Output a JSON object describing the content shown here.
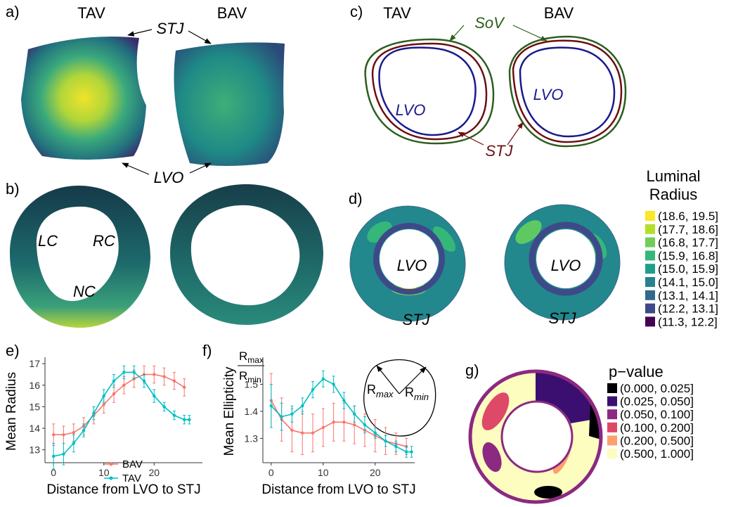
{
  "panels": {
    "a": {
      "label": "a)",
      "titles": [
        "TAV",
        "BAV"
      ],
      "annotations": [
        "STJ",
        "LVO"
      ]
    },
    "b": {
      "label": "b)",
      "annotations": [
        "LC",
        "RC",
        "NC"
      ]
    },
    "c": {
      "label": "c)",
      "titles": [
        "TAV",
        "BAV"
      ],
      "annotations": [
        "SoV",
        "LVO",
        "LVO",
        "STJ"
      ]
    },
    "d": {
      "label": "d)",
      "annotations": [
        "LVO",
        "STJ",
        "LVO",
        "STJ"
      ],
      "legend": {
        "title": [
          "Luminal",
          "Radius"
        ],
        "entries": [
          {
            "label": "(18.6, 19.5]",
            "color": "#fde725"
          },
          {
            "label": "(17.7, 18.6]",
            "color": "#b5de2b"
          },
          {
            "label": "(16.8, 17.7]",
            "color": "#6ece58"
          },
          {
            "label": "(15.9, 16.8]",
            "color": "#35b779"
          },
          {
            "label": "(15.0, 15.9]",
            "color": "#1f9e89"
          },
          {
            "label": "(14.1, 15.0]",
            "color": "#26828e"
          },
          {
            "label": "(13.1, 14.1]",
            "color": "#31688e"
          },
          {
            "label": "(12.2, 13.1]",
            "color": "#3e4989"
          },
          {
            "label": "(11.3, 12.2]",
            "color": "#440154"
          }
        ]
      }
    },
    "g": {
      "label": "g)",
      "legend": {
        "title": "p−value",
        "entries": [
          {
            "label": "(0.000, 0.025]",
            "color": "#000004"
          },
          {
            "label": "(0.025, 0.050]",
            "color": "#3b0f70"
          },
          {
            "label": "(0.050, 0.100]",
            "color": "#8c2981"
          },
          {
            "label": "(0.100, 0.200]",
            "color": "#de4968"
          },
          {
            "label": "(0.200, 0.500]",
            "color": "#fe9f6d"
          },
          {
            "label": "(0.500, 1.000]",
            "color": "#fcfdbf"
          }
        ]
      }
    }
  },
  "chart_data": [
    {
      "type": "line",
      "panel_label": "e)",
      "x_label": "Distance from LVO to STJ",
      "y_label": "Mean Radius",
      "xlim": [
        -1.7,
        29.6
      ],
      "ylim": [
        12.4,
        17.3
      ],
      "xticks": [
        0,
        10,
        20
      ],
      "yticks": [
        13,
        14,
        15,
        16,
        17
      ],
      "legend": "bottom",
      "series": [
        {
          "name": "BAV",
          "color": "#f8766d",
          "x": [
            0,
            2,
            4,
            6,
            8,
            10,
            12,
            14,
            16,
            18,
            20,
            22,
            24,
            26
          ],
          "values": [
            13.7,
            13.7,
            13.8,
            14.1,
            14.6,
            15.1,
            15.6,
            16.0,
            16.3,
            16.5,
            16.5,
            16.4,
            16.2,
            15.9
          ],
          "errors": [
            0.5,
            0.4,
            0.4,
            0.4,
            0.4,
            0.4,
            0.4,
            0.4,
            0.4,
            0.4,
            0.4,
            0.4,
            0.4,
            0.4
          ]
        },
        {
          "name": "TAV",
          "color": "#00bfc4",
          "x": [
            0,
            2,
            4,
            6,
            8,
            10,
            12,
            14,
            16,
            18,
            20,
            22,
            24,
            26,
            27
          ],
          "values": [
            12.7,
            12.8,
            13.3,
            13.9,
            14.7,
            15.5,
            16.2,
            16.6,
            16.6,
            16.2,
            15.5,
            15.0,
            14.6,
            14.4,
            14.4
          ],
          "errors": [
            0.6,
            0.5,
            0.4,
            0.3,
            0.3,
            0.3,
            0.3,
            0.3,
            0.3,
            0.3,
            0.3,
            0.2,
            0.2,
            0.2,
            0.2
          ]
        }
      ]
    },
    {
      "type": "line",
      "panel_label": "f)",
      "x_label": "Distance from LVO to STJ",
      "y_label": "Mean Ellipticity",
      "y_label_fraction": {
        "numerator": {
          "base": "R",
          "sub": "max"
        },
        "denominator": {
          "base": "R",
          "sub": "min"
        }
      },
      "inset_labels": [
        {
          "base": "R",
          "sub": "max"
        },
        {
          "base": "R",
          "sub": "min"
        }
      ],
      "xlim": [
        -1.6,
        27.6
      ],
      "ylim": [
        1.21,
        1.6
      ],
      "xticks": [
        0,
        10,
        20
      ],
      "yticks": [
        1.3,
        1.4,
        1.5
      ],
      "legend": false,
      "series": [
        {
          "name": "BAV",
          "color": "#f8766d",
          "x": [
            0,
            2,
            4,
            6,
            8,
            10,
            12,
            14,
            16,
            18,
            20,
            22,
            24,
            26
          ],
          "values": [
            1.44,
            1.37,
            1.33,
            1.32,
            1.32,
            1.34,
            1.36,
            1.36,
            1.35,
            1.33,
            1.31,
            1.29,
            1.28,
            1.27
          ],
          "errors": [
            0.1,
            0.08,
            0.08,
            0.08,
            0.07,
            0.07,
            0.07,
            0.07,
            0.07,
            0.06,
            0.06,
            0.05,
            0.04,
            0.03
          ]
        },
        {
          "name": "TAV",
          "color": "#00bfc4",
          "x": [
            0,
            2,
            4,
            6,
            8,
            10,
            12,
            14,
            16,
            18,
            20,
            22,
            24,
            26,
            27
          ],
          "values": [
            1.42,
            1.38,
            1.39,
            1.42,
            1.48,
            1.52,
            1.5,
            1.44,
            1.39,
            1.35,
            1.32,
            1.29,
            1.27,
            1.25,
            1.25
          ],
          "errors": [
            0.08,
            0.05,
            0.03,
            0.03,
            0.03,
            0.03,
            0.03,
            0.03,
            0.03,
            0.03,
            0.02,
            0.02,
            0.02,
            0.02,
            0.02
          ]
        }
      ]
    }
  ]
}
